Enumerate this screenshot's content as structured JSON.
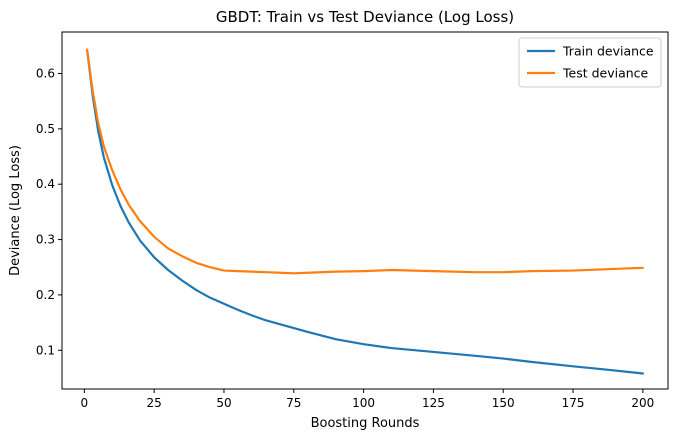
{
  "chart_data": {
    "type": "line",
    "title": "GBDT: Train vs Test Deviance (Log Loss)",
    "xlabel": "Boosting Rounds",
    "ylabel": "Deviance (Log Loss)",
    "xlim": [
      -8,
      209
    ],
    "ylim": [
      0.03,
      0.675
    ],
    "xticks": [
      0,
      25,
      50,
      75,
      100,
      125,
      150,
      175,
      200
    ],
    "yticks": [
      0.1,
      0.2,
      0.3,
      0.4,
      0.5,
      0.6
    ],
    "ytick_labels": [
      "0.1",
      "0.2",
      "0.3",
      "0.4",
      "0.5",
      "0.6"
    ],
    "grid": false,
    "legend_position": "upper-right",
    "series": [
      {
        "name": "Train deviance",
        "color": "#1f77b4",
        "x": [
          1,
          3,
          5,
          7,
          10,
          13,
          16,
          20,
          25,
          30,
          35,
          40,
          45,
          50,
          55,
          60,
          65,
          70,
          75,
          80,
          90,
          100,
          110,
          125,
          140,
          150,
          160,
          175,
          185,
          200
        ],
        "y": [
          0.643,
          0.56,
          0.495,
          0.448,
          0.398,
          0.36,
          0.33,
          0.298,
          0.268,
          0.245,
          0.226,
          0.209,
          0.195,
          0.184,
          0.173,
          0.163,
          0.154,
          0.147,
          0.14,
          0.133,
          0.12,
          0.111,
          0.104,
          0.097,
          0.09,
          0.085,
          0.079,
          0.071,
          0.066,
          0.058
        ]
      },
      {
        "name": "Test deviance",
        "color": "#ff7f0e",
        "x": [
          1,
          3,
          5,
          7,
          10,
          13,
          16,
          20,
          25,
          30,
          35,
          40,
          45,
          50,
          55,
          60,
          65,
          70,
          75,
          80,
          90,
          100,
          110,
          125,
          140,
          150,
          160,
          175,
          185,
          200
        ],
        "y": [
          0.643,
          0.568,
          0.51,
          0.468,
          0.425,
          0.39,
          0.362,
          0.333,
          0.305,
          0.284,
          0.27,
          0.258,
          0.25,
          0.244,
          0.243,
          0.242,
          0.241,
          0.24,
          0.239,
          0.24,
          0.242,
          0.243,
          0.245,
          0.243,
          0.241,
          0.241,
          0.243,
          0.244,
          0.246,
          0.249
        ]
      }
    ]
  }
}
